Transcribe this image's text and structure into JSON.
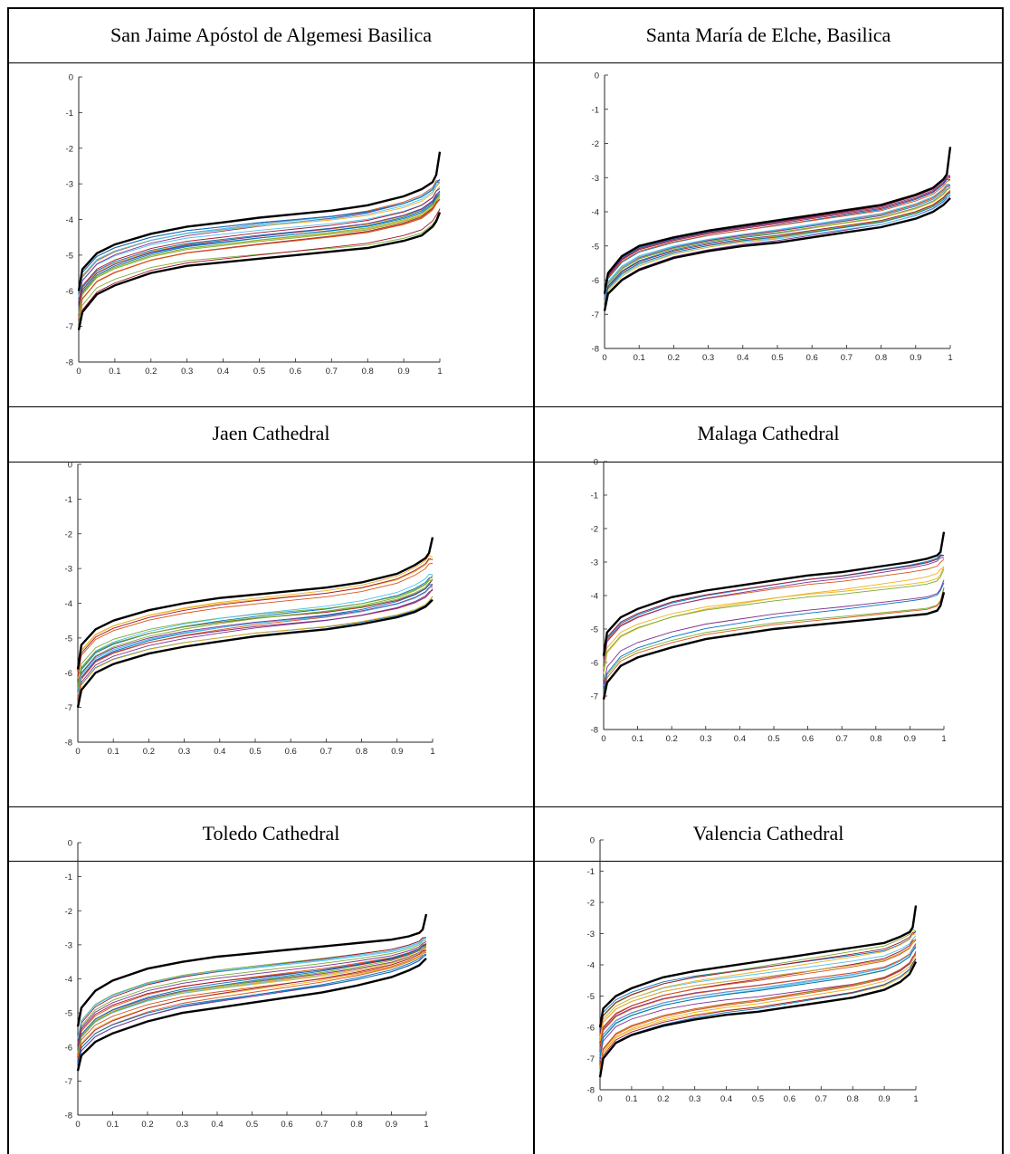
{
  "figure": {
    "panels": [
      {
        "title": "San Jaime Apóstol de Algemesi Basilica"
      },
      {
        "title": "Santa María de Elche, Basilica"
      },
      {
        "title": "Jaen Cathedral"
      },
      {
        "title": "Malaga Cathedral"
      },
      {
        "title": "Toledo Cathedral"
      },
      {
        "title": "Valencia Cathedral"
      }
    ]
  },
  "chart_data": [
    {
      "type": "line",
      "title": "San Jaime Apóstol de Algemesi Basilica",
      "xlim": [
        0,
        1
      ],
      "ylim": [
        -8,
        0
      ],
      "x_ticks": [
        "0",
        "0.1",
        "0.2",
        "0.3",
        "0.4",
        "0.5",
        "0.6",
        "0.7",
        "0.8",
        "0.9",
        "1"
      ],
      "y_ticks": [
        "0",
        "-1",
        "-2",
        "-3",
        "-4",
        "-5",
        "-6",
        "-7",
        "-8"
      ],
      "x": [
        0.0,
        0.01,
        0.05,
        0.1,
        0.2,
        0.3,
        0.4,
        0.5,
        0.6,
        0.7,
        0.8,
        0.9,
        0.95,
        0.98,
        0.99,
        1.0
      ],
      "envelope_upper": [
        -6.0,
        -5.4,
        -4.95,
        -4.7,
        -4.4,
        -4.2,
        -4.08,
        -3.95,
        -3.85,
        -3.75,
        -3.6,
        -3.35,
        -3.15,
        -2.95,
        -2.75,
        -2.1
      ],
      "envelope_lower": [
        -7.1,
        -6.6,
        -6.1,
        -5.85,
        -5.5,
        -5.3,
        -5.2,
        -5.1,
        -5.0,
        -4.9,
        -4.8,
        -4.6,
        -4.45,
        -4.2,
        -4.05,
        -3.8
      ],
      "inner_curve_count": 22
    },
    {
      "type": "line",
      "title": "Santa María de Elche, Basilica",
      "xlim": [
        0,
        1
      ],
      "ylim": [
        -8,
        0
      ],
      "x_ticks": [
        "0",
        "0.1",
        "0.2",
        "0.3",
        "0.4",
        "0.5",
        "0.6",
        "0.7",
        "0.8",
        "0.9",
        "1"
      ],
      "y_ticks": [
        "0",
        "-1",
        "-2",
        "-3",
        "-4",
        "-5",
        "-6",
        "-7",
        "-8"
      ],
      "x": [
        0.0,
        0.01,
        0.05,
        0.1,
        0.2,
        0.3,
        0.4,
        0.5,
        0.6,
        0.7,
        0.8,
        0.9,
        0.95,
        0.98,
        0.99,
        1.0
      ],
      "envelope_upper": [
        -6.4,
        -5.8,
        -5.3,
        -5.0,
        -4.75,
        -4.55,
        -4.4,
        -4.25,
        -4.1,
        -3.95,
        -3.8,
        -3.5,
        -3.3,
        -3.05,
        -2.9,
        -2.1
      ],
      "envelope_lower": [
        -6.9,
        -6.4,
        -6.0,
        -5.7,
        -5.35,
        -5.15,
        -5.0,
        -4.9,
        -4.75,
        -4.6,
        -4.45,
        -4.2,
        -4.0,
        -3.8,
        -3.7,
        -3.6
      ],
      "inner_curve_count": 22
    },
    {
      "type": "line",
      "title": "Jaen Cathedral",
      "xlim": [
        0,
        1
      ],
      "ylim": [
        -8,
        0
      ],
      "x_ticks": [
        "0",
        "0.1",
        "0.2",
        "0.3",
        "0.4",
        "0.5",
        "0.6",
        "0.7",
        "0.8",
        "0.9",
        "1"
      ],
      "y_ticks": [
        "0",
        "-1",
        "-2",
        "-3",
        "-4",
        "-5",
        "-6",
        "-7",
        "-8"
      ],
      "x": [
        0.0,
        0.01,
        0.05,
        0.1,
        0.2,
        0.3,
        0.4,
        0.5,
        0.6,
        0.7,
        0.8,
        0.9,
        0.95,
        0.98,
        0.99,
        1.0
      ],
      "envelope_upper": [
        -5.9,
        -5.2,
        -4.75,
        -4.5,
        -4.2,
        -4.0,
        -3.85,
        -3.75,
        -3.65,
        -3.55,
        -3.4,
        -3.15,
        -2.9,
        -2.7,
        -2.55,
        -2.1
      ],
      "envelope_lower": [
        -7.0,
        -6.5,
        -6.0,
        -5.75,
        -5.45,
        -5.25,
        -5.1,
        -4.95,
        -4.85,
        -4.75,
        -4.6,
        -4.4,
        -4.25,
        -4.1,
        -4.0,
        -3.9
      ],
      "inner_curve_count": 20
    },
    {
      "type": "line",
      "title": "Malaga Cathedral",
      "xlim": [
        0,
        1
      ],
      "ylim": [
        -8,
        0
      ],
      "x_ticks": [
        "0",
        "0.1",
        "0.2",
        "0.3",
        "0.4",
        "0.5",
        "0.6",
        "0.7",
        "0.8",
        "0.9",
        "1"
      ],
      "y_ticks": [
        "0",
        "-1",
        "-2",
        "-3",
        "-4",
        "-5",
        "-6",
        "-7",
        "-8"
      ],
      "x": [
        0.0,
        0.01,
        0.05,
        0.1,
        0.2,
        0.3,
        0.4,
        0.5,
        0.6,
        0.7,
        0.8,
        0.9,
        0.95,
        0.98,
        0.99,
        1.0
      ],
      "envelope_upper": [
        -5.8,
        -5.1,
        -4.65,
        -4.4,
        -4.05,
        -3.85,
        -3.7,
        -3.55,
        -3.4,
        -3.3,
        -3.15,
        -3.0,
        -2.9,
        -2.8,
        -2.7,
        -2.1
      ],
      "envelope_lower": [
        -7.1,
        -6.6,
        -6.1,
        -5.85,
        -5.55,
        -5.3,
        -5.15,
        -5.0,
        -4.9,
        -4.8,
        -4.7,
        -4.6,
        -4.55,
        -4.45,
        -4.3,
        -3.9
      ],
      "inner_curve_count": 12
    },
    {
      "type": "line",
      "title": "Toledo Cathedral",
      "xlim": [
        0,
        1
      ],
      "ylim": [
        -8,
        0
      ],
      "x_ticks": [
        "0",
        "0.1",
        "0.2",
        "0.3",
        "0.4",
        "0.5",
        "0.6",
        "0.7",
        "0.8",
        "0.9",
        "1"
      ],
      "y_ticks": [
        "0",
        "-1",
        "-2",
        "-3",
        "-4",
        "-5",
        "-6",
        "-7",
        "-8"
      ],
      "x": [
        0.0,
        0.01,
        0.05,
        0.1,
        0.2,
        0.3,
        0.4,
        0.5,
        0.6,
        0.7,
        0.8,
        0.9,
        0.95,
        0.98,
        0.99,
        1.0
      ],
      "envelope_upper": [
        -5.4,
        -4.85,
        -4.35,
        -4.05,
        -3.7,
        -3.5,
        -3.35,
        -3.25,
        -3.15,
        -3.05,
        -2.95,
        -2.85,
        -2.75,
        -2.65,
        -2.55,
        -2.1
      ],
      "envelope_lower": [
        -6.7,
        -6.25,
        -5.85,
        -5.6,
        -5.25,
        -5.0,
        -4.85,
        -4.7,
        -4.55,
        -4.4,
        -4.2,
        -3.95,
        -3.75,
        -3.6,
        -3.5,
        -3.4
      ],
      "inner_curve_count": 22
    },
    {
      "type": "line",
      "title": "Valencia Cathedral",
      "xlim": [
        0,
        1
      ],
      "ylim": [
        -8,
        0
      ],
      "x_ticks": [
        "0",
        "0.1",
        "0.2",
        "0.3",
        "0.4",
        "0.5",
        "0.6",
        "0.7",
        "0.8",
        "0.9",
        "1"
      ],
      "y_ticks": [
        "0",
        "-1",
        "-2",
        "-3",
        "-4",
        "-5",
        "-6",
        "-7",
        "-8"
      ],
      "x": [
        0.0,
        0.01,
        0.05,
        0.1,
        0.2,
        0.3,
        0.4,
        0.5,
        0.6,
        0.7,
        0.8,
        0.9,
        0.95,
        0.98,
        0.99,
        1.0
      ],
      "envelope_upper": [
        -6.0,
        -5.4,
        -5.0,
        -4.75,
        -4.4,
        -4.2,
        -4.05,
        -3.9,
        -3.75,
        -3.6,
        -3.45,
        -3.3,
        -3.1,
        -2.95,
        -2.8,
        -2.1
      ],
      "envelope_lower": [
        -7.6,
        -7.0,
        -6.5,
        -6.25,
        -5.95,
        -5.75,
        -5.6,
        -5.5,
        -5.35,
        -5.2,
        -5.05,
        -4.8,
        -4.55,
        -4.3,
        -4.1,
        -3.9
      ],
      "inner_curve_count": 24
    }
  ],
  "colors": {
    "envelope": "#000000",
    "series_palette": [
      "#0072BD",
      "#D95319",
      "#EDB120",
      "#7E2F8E",
      "#77AC30",
      "#4DBEEE",
      "#A2142F"
    ]
  }
}
